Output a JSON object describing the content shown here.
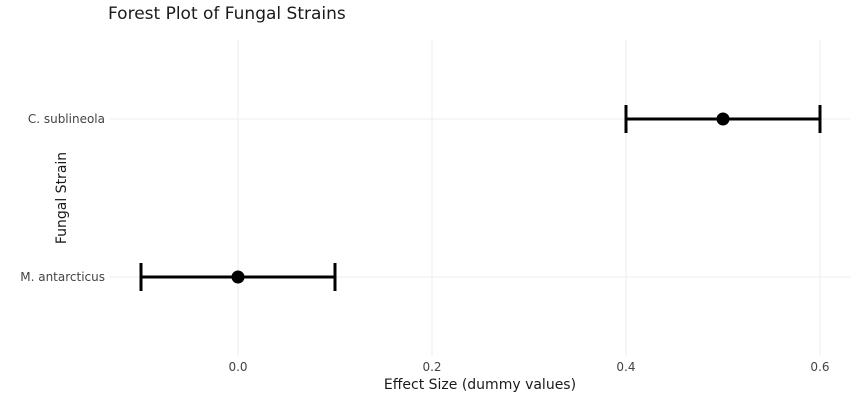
{
  "chart_data": {
    "type": "scatter",
    "subtype": "forest-plot",
    "title": "Forest Plot of Fungal Strains",
    "xlabel": "Effect Size (dummy values)",
    "ylabel": "Fungal Strain",
    "xlim": [
      -0.132,
      0.631
    ],
    "xticks": [
      0.0,
      0.2,
      0.4,
      0.6
    ],
    "xtick_labels": [
      "0.0",
      "0.2",
      "0.4",
      "0.6"
    ],
    "grid": true,
    "legend": false,
    "points": [
      {
        "label": "C. sublineola",
        "effect": 0.5,
        "ci_low": 0.4,
        "ci_high": 0.6
      },
      {
        "label": "M. antarcticus",
        "effect": 0.0,
        "ci_low": -0.1,
        "ci_high": 0.1
      }
    ],
    "colors": {
      "marker": "#000000",
      "error_bar": "#000000",
      "grid": "#ededed",
      "tick_text": "#444444",
      "title_text": "#1a1a1a",
      "background": "#ffffff"
    }
  }
}
